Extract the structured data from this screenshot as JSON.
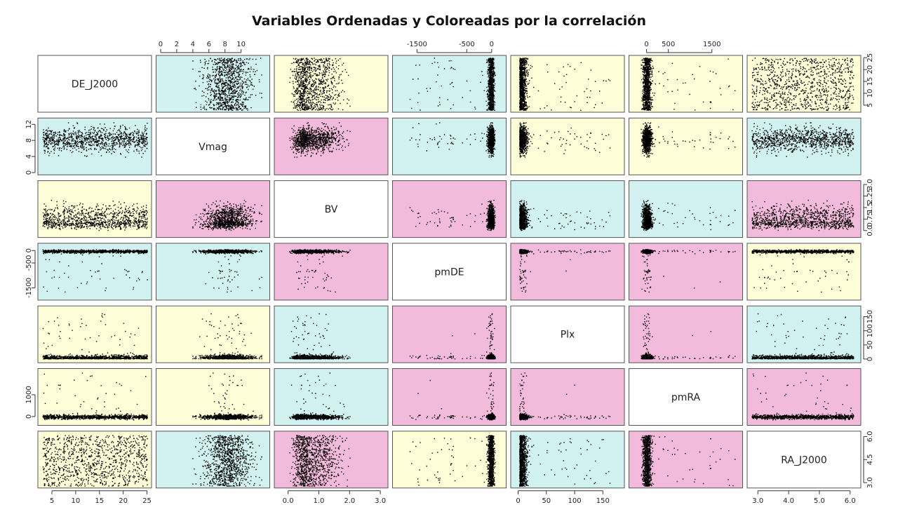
{
  "title": "Variables Ordenadas y Coloreadas por la correlación",
  "chart_data": {
    "type": "scatter-matrix",
    "title": "Variables Ordenadas y Coloreadas por la correlación",
    "variables": [
      {
        "name": "DE_J2000",
        "range": [
          3,
          25
        ],
        "ticks": [
          5,
          10,
          15,
          20,
          25
        ],
        "tick_labels": [
          "5",
          "10",
          "15",
          "20",
          "25"
        ]
      },
      {
        "name": "Vmag",
        "range": [
          0,
          13
        ],
        "ticks": [
          0,
          4,
          8,
          12
        ],
        "tick_labels": [
          "0",
          "4",
          "8",
          "12"
        ],
        "top_ticks": [
          0,
          2,
          4,
          6,
          8,
          10
        ],
        "top_tick_labels": [
          "0",
          "2",
          "4",
          "6",
          "8",
          "10"
        ]
      },
      {
        "name": "BV",
        "range": [
          -0.3,
          3.1
        ],
        "ticks": [
          0,
          1,
          2,
          3
        ],
        "tick_labels": [
          "0.0",
          "1.0",
          "2.0",
          "3.0"
        ],
        "right_ticks": [
          0,
          0.75,
          1.5,
          2.25,
          3.0
        ],
        "right_tick_labels": [
          "0.0",
          "0.75",
          "1.5",
          "2.25",
          "3.0"
        ]
      },
      {
        "name": "pmDE",
        "range": [
          -1900,
          200
        ],
        "ticks": [
          -1500,
          -500,
          0
        ],
        "tick_labels": [
          "-1500",
          "-500",
          "0"
        ]
      },
      {
        "name": "Plx",
        "range": [
          -5,
          180
        ],
        "ticks": [
          0,
          50,
          100,
          150
        ],
        "tick_labels": [
          "0",
          "50",
          "100",
          "150"
        ]
      },
      {
        "name": "pmRA",
        "range": [
          -300,
          2100
        ],
        "ticks": [
          0,
          500,
          1500
        ],
        "tick_labels": [
          "0",
          "500",
          "1500"
        ],
        "left_ticks": [
          0,
          1000
        ],
        "left_tick_labels": [
          "0",
          "1000"
        ]
      },
      {
        "name": "RA_J2000",
        "range": [
          2.8,
          6.2
        ],
        "ticks": [
          3,
          4,
          5,
          6
        ],
        "tick_labels": [
          "3.0",
          "4.0",
          "5.0",
          "6.0"
        ],
        "right_ticks": [
          3,
          4.5,
          6
        ],
        "right_tick_labels": [
          "3.0",
          "4.5",
          "6.0"
        ]
      }
    ],
    "correlation_colors": {
      "low": "#fdfdd8",
      "medium": "#d2f1f1",
      "high": "#f3bbdb",
      "diagonal": "#ffffff"
    },
    "panel_colors": [
      [
        "diagonal",
        "medium",
        "low",
        "medium",
        "low",
        "low",
        "low"
      ],
      [
        "medium",
        "diagonal",
        "high",
        "medium",
        "low",
        "low",
        "medium"
      ],
      [
        "low",
        "high",
        "diagonal",
        "high",
        "medium",
        "medium",
        "high"
      ],
      [
        "medium",
        "medium",
        "high",
        "diagonal",
        "high",
        "high",
        "low"
      ],
      [
        "low",
        "low",
        "medium",
        "high",
        "diagonal",
        "high",
        "medium"
      ],
      [
        "low",
        "low",
        "medium",
        "high",
        "high",
        "diagonal",
        "high"
      ],
      [
        "low",
        "medium",
        "high",
        "low",
        "medium",
        "high",
        "diagonal"
      ]
    ],
    "point_color": "#000000"
  }
}
